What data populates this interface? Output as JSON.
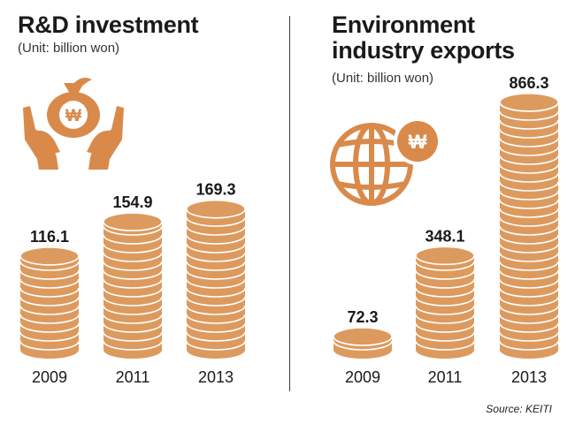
{
  "colors": {
    "coin_fill": "#dd9a5e",
    "coin_edge": "#c47f40",
    "coin_line": "#ffffff",
    "icon_fill": "#d98a4a"
  },
  "source": "Source: KEITI",
  "icons": {
    "left": "money-bag-hands-icon",
    "right": "globe-won-icon"
  },
  "chart_data": [
    {
      "type": "bar",
      "title": "R&D investment",
      "subtitle": "(Unit: billion won)",
      "categories": [
        "2009",
        "2011",
        "2013"
      ],
      "values": [
        116.1,
        154.9,
        169.3
      ],
      "value_labels": [
        "116.1",
        "154.9",
        "169.3"
      ]
    },
    {
      "type": "bar",
      "title": "Environment industry exports",
      "subtitle": "(Unit: billion won)",
      "categories": [
        "2009",
        "2011",
        "2013"
      ],
      "values": [
        72.3,
        348.1,
        866.3
      ],
      "value_labels": [
        "72.3",
        "348.1",
        "866.3"
      ]
    }
  ]
}
